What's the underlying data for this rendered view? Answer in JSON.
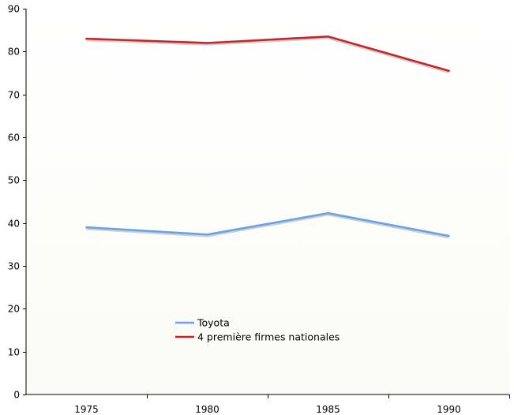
{
  "chart_data": {
    "type": "line",
    "title": "",
    "xlabel": "",
    "ylabel": "",
    "categories": [
      "1975",
      "1980",
      "1985",
      "1990"
    ],
    "ylim": [
      0,
      90
    ],
    "yticks": [
      0,
      10,
      20,
      30,
      40,
      50,
      60,
      70,
      80,
      90
    ],
    "grid": false,
    "legend_position": "lower-center",
    "series": [
      {
        "name": "Toyota",
        "color": "#6aa2e8",
        "values": [
          39,
          37.3,
          42.3,
          37
        ]
      },
      {
        "name": "4 première firmes nationales",
        "color": "#c8242c",
        "values": [
          83,
          82,
          83.5,
          75.5
        ]
      }
    ]
  }
}
